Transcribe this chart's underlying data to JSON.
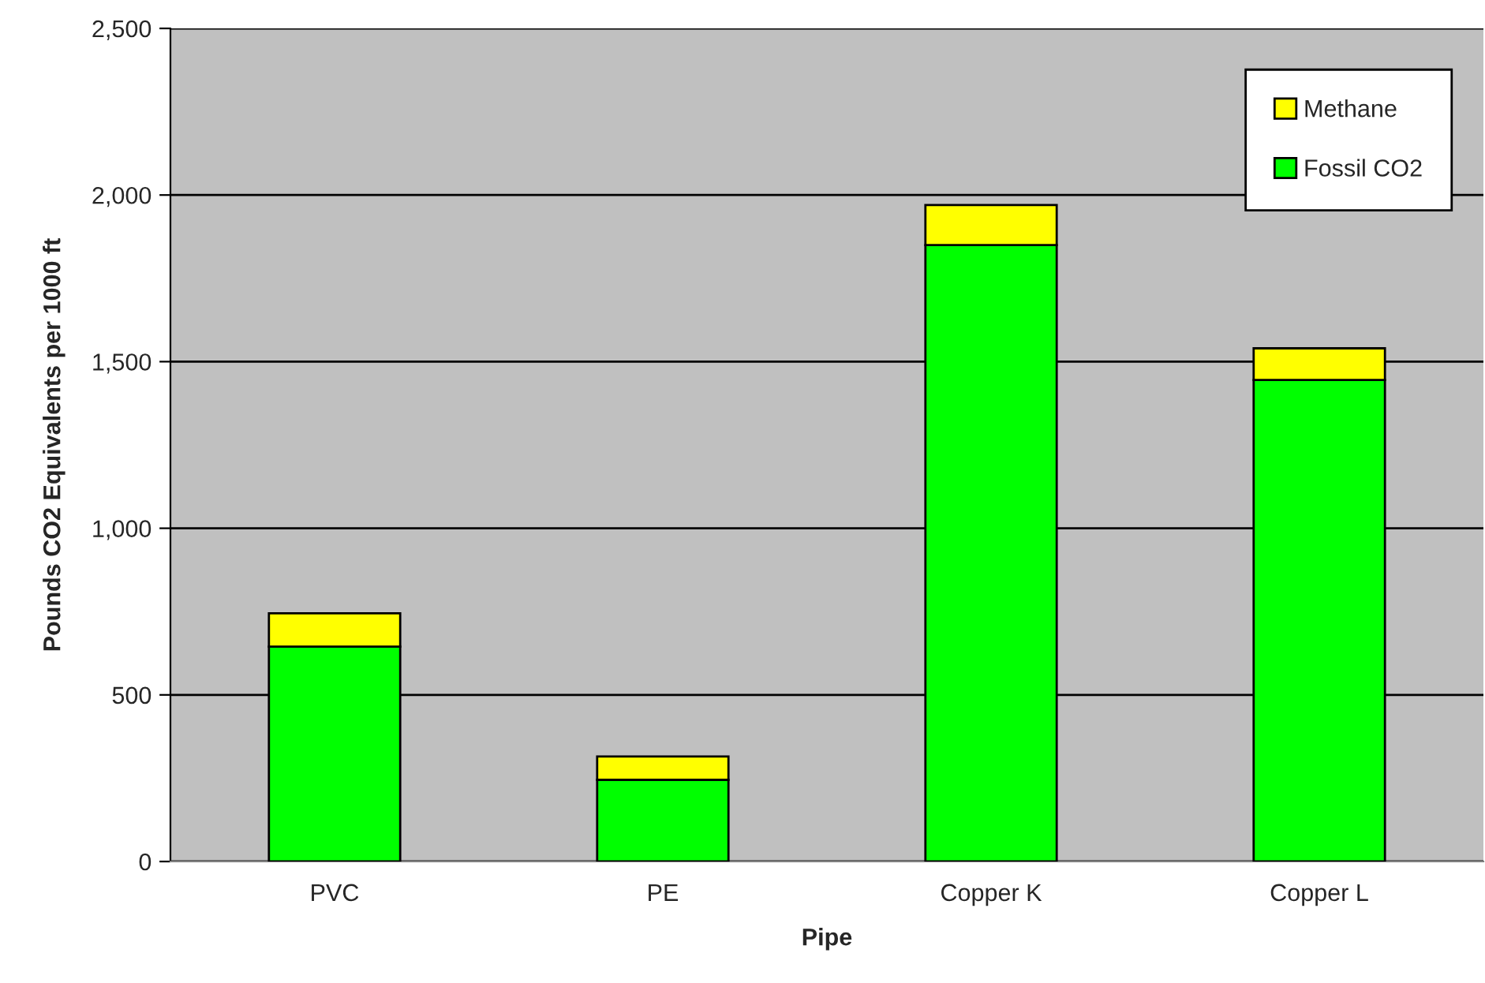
{
  "chart_data": {
    "type": "bar",
    "stacked": true,
    "xlabel": "Pipe",
    "ylabel": "Pounds CO2 Equivalents per 1000 ft",
    "categories": [
      "PVC",
      "PE",
      "Copper K",
      "Copper L"
    ],
    "series": [
      {
        "name": "Fossil CO2",
        "color": "#00ff00",
        "values": [
          645,
          245,
          1850,
          1445
        ]
      },
      {
        "name": "Methane",
        "color": "#ffff00",
        "values": [
          100,
          70,
          120,
          95
        ]
      }
    ],
    "ylim": [
      0,
      2500
    ],
    "yticks": [
      {
        "value": 0,
        "label": "0"
      },
      {
        "value": 500,
        "label": "500"
      },
      {
        "value": 1000,
        "label": "1,000"
      },
      {
        "value": 1500,
        "label": "1,500"
      },
      {
        "value": 2000,
        "label": "2,000"
      },
      {
        "value": 2500,
        "label": "2,500"
      }
    ],
    "grid": "y",
    "legend": "top right"
  }
}
